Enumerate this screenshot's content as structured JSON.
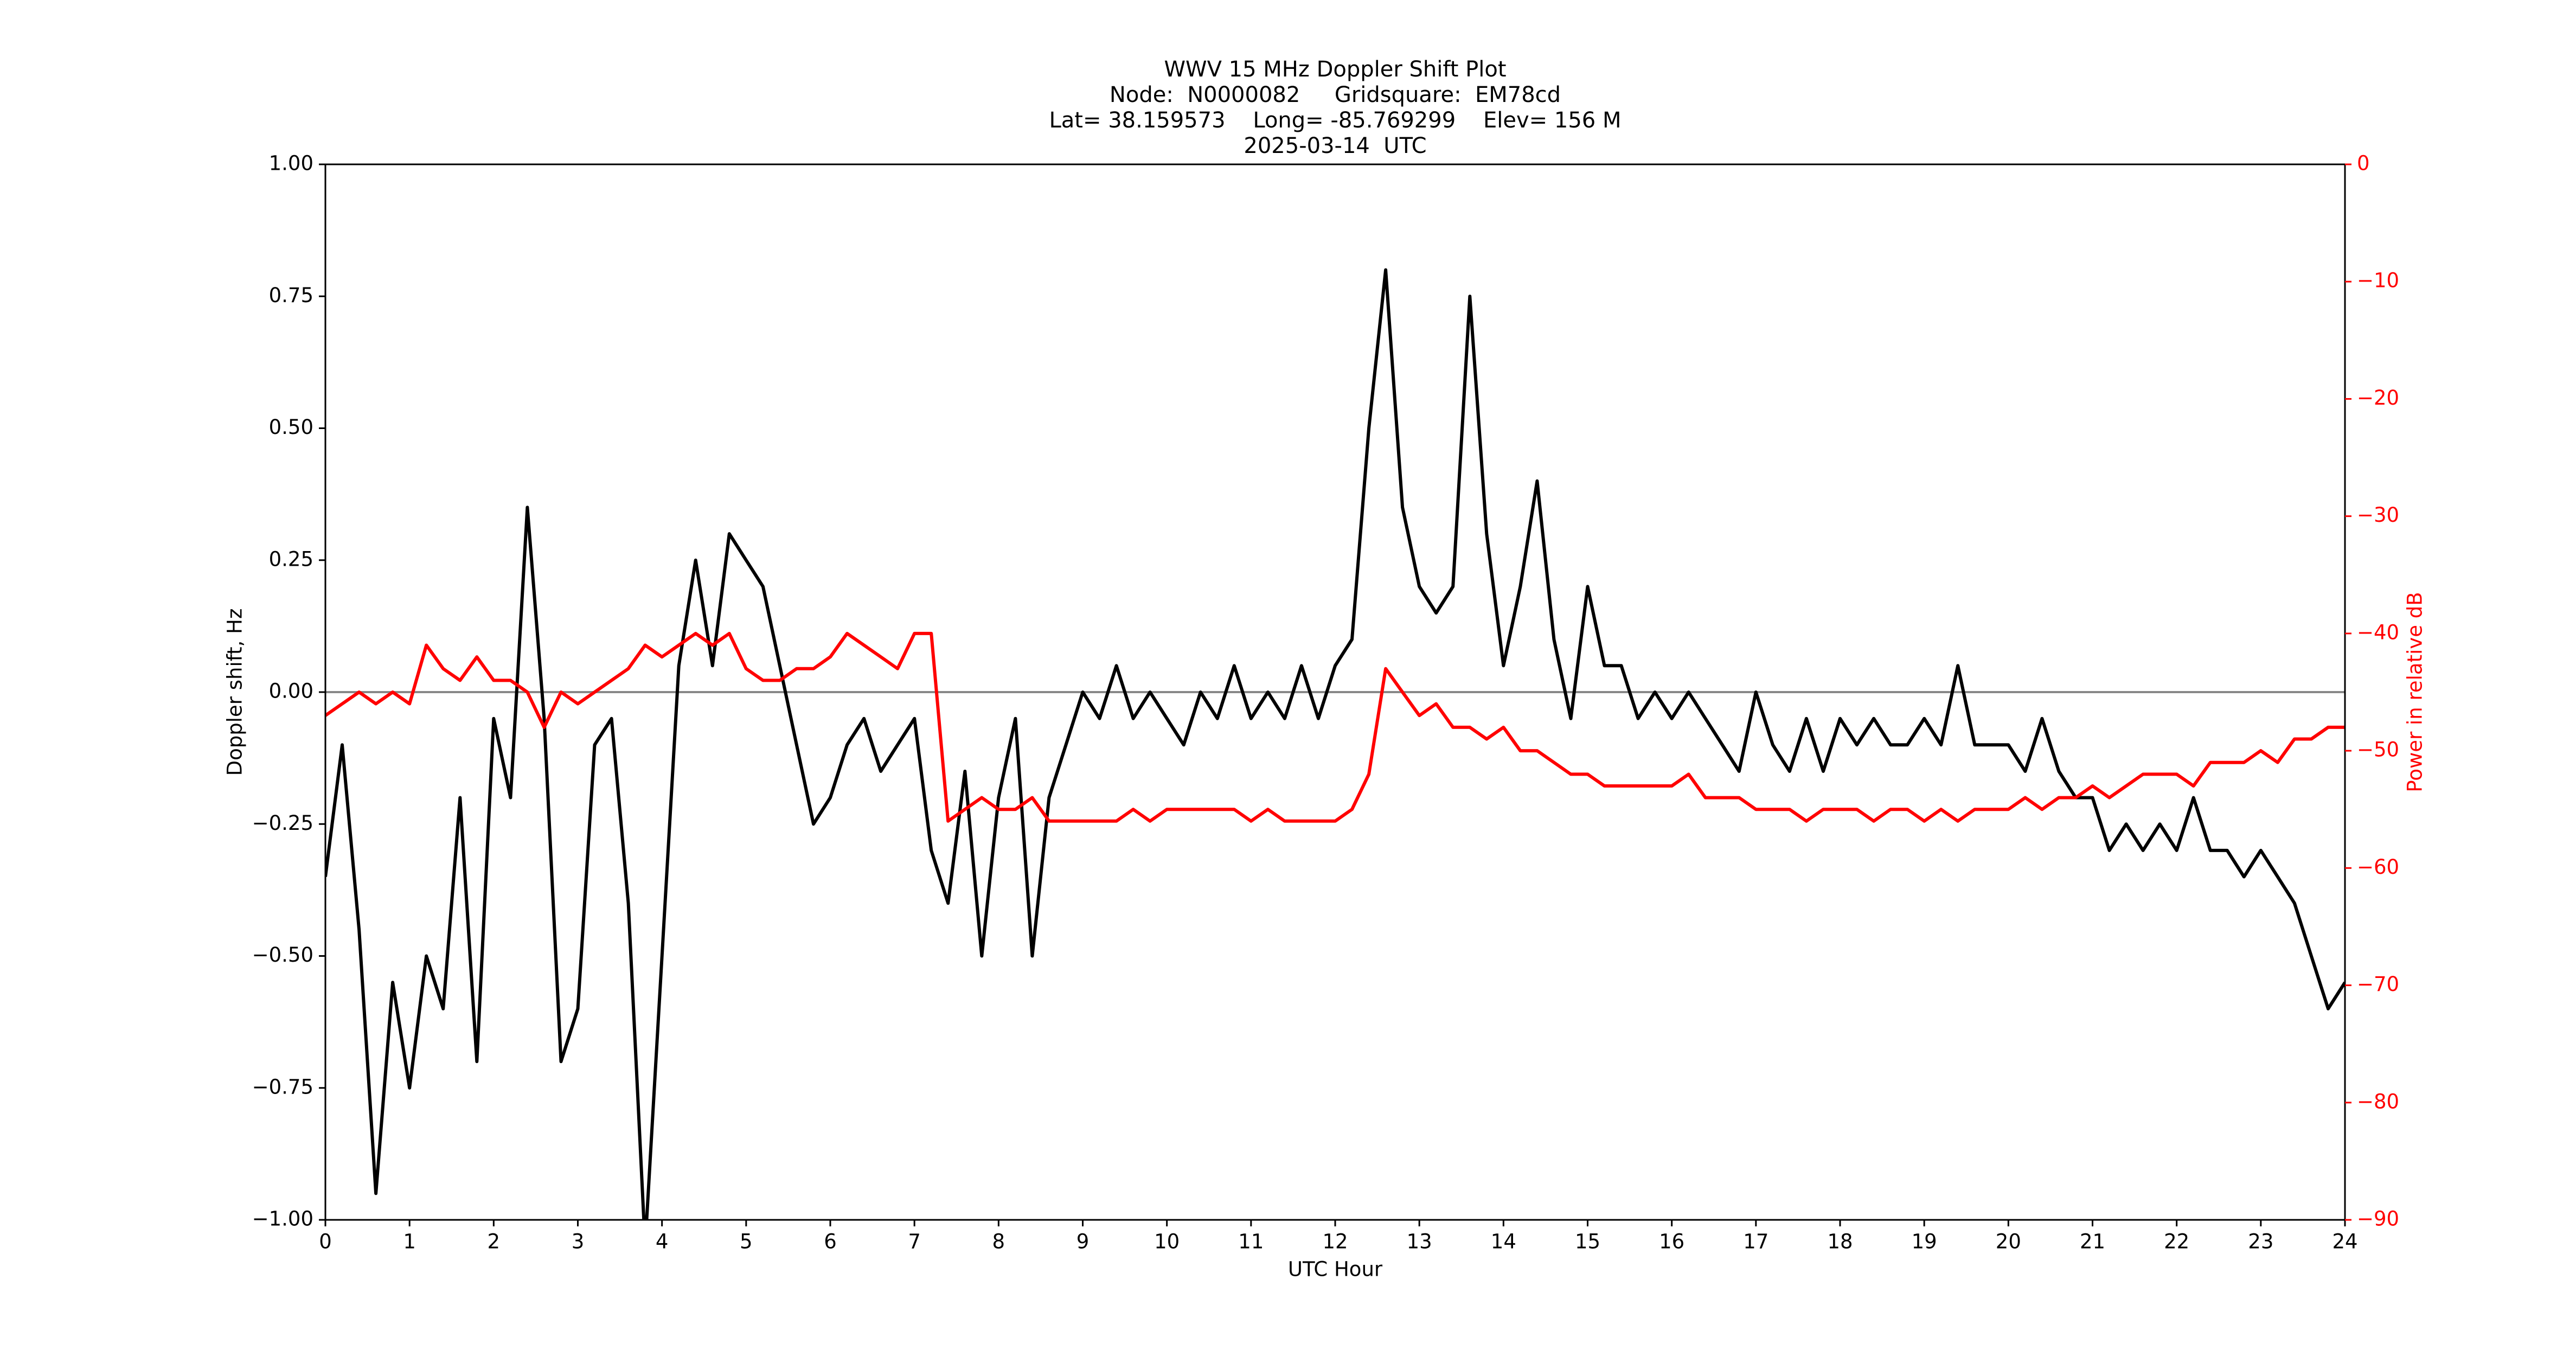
{
  "chart_data": {
    "type": "line",
    "title": [
      "WWV 15 MHz Doppler Shift Plot",
      "Node:  N0000082     Gridsquare:  EM78cd",
      "Lat= 38.159573    Long= -85.769299    Elev= 156 M",
      "2025-03-14  UTC"
    ],
    "xlabel": "UTC Hour",
    "ylabel": "Doppler shift, Hz",
    "y2label": "Power in relative dB",
    "x": [
      0,
      0.2,
      0.4,
      0.6,
      0.8,
      1,
      1.2,
      1.4,
      1.6,
      1.8,
      2,
      2.2,
      2.4,
      2.6,
      2.8,
      3,
      3.2,
      3.4,
      3.6,
      3.8,
      4,
      4.2,
      4.4,
      4.6,
      4.8,
      5,
      5.2,
      5.4,
      5.6,
      5.8,
      6,
      6.2,
      6.4,
      6.6,
      6.8,
      7,
      7.2,
      7.4,
      7.6,
      7.8,
      8,
      8.2,
      8.4,
      8.6,
      8.8,
      9,
      9.2,
      9.4,
      9.6,
      9.8,
      10,
      10.2,
      10.4,
      10.6,
      10.8,
      11,
      11.2,
      11.4,
      11.6,
      11.8,
      12,
      12.2,
      12.4,
      12.6,
      12.8,
      13,
      13.2,
      13.4,
      13.6,
      13.8,
      14,
      14.2,
      14.4,
      14.6,
      14.8,
      15,
      15.2,
      15.4,
      15.6,
      15.8,
      16,
      16.2,
      16.4,
      16.6,
      16.8,
      17,
      17.2,
      17.4,
      17.6,
      17.8,
      18,
      18.2,
      18.4,
      18.6,
      18.8,
      19,
      19.2,
      19.4,
      19.6,
      19.8,
      20,
      20.2,
      20.4,
      20.6,
      20.8,
      21,
      21.2,
      21.4,
      21.6,
      21.8,
      22,
      22.2,
      22.4,
      22.6,
      22.8,
      23,
      23.2,
      23.4,
      23.6,
      23.8,
      24
    ],
    "series": [
      {
        "color": "#000000",
        "values": [
          -0.35,
          -0.1,
          -0.45,
          -0.95,
          -0.55,
          -0.75,
          -0.5,
          -0.6,
          -0.2,
          -0.7,
          -0.05,
          -0.2,
          0.35,
          -0.05,
          -0.7,
          -0.6,
          -0.1,
          -0.05,
          -0.4,
          -1.05,
          -0.5,
          0.05,
          0.25,
          0.05,
          0.3,
          0.25,
          0.2,
          0.05,
          -0.1,
          -0.25,
          -0.2,
          -0.1,
          -0.05,
          -0.15,
          -0.1,
          -0.05,
          -0.3,
          -0.4,
          -0.15,
          -0.5,
          -0.2,
          -0.05,
          -0.5,
          -0.2,
          -0.1,
          0,
          -0.05,
          0.05,
          -0.05,
          0,
          -0.05,
          -0.1,
          0,
          -0.05,
          0.05,
          -0.05,
          0,
          -0.05,
          0.05,
          -0.05,
          0.05,
          0.1,
          0.5,
          0.8,
          0.35,
          0.2,
          0.15,
          0.2,
          0.75,
          0.3,
          0.05,
          0.2,
          0.4,
          0.1,
          -0.05,
          0.2,
          0.05,
          0.05,
          -0.05,
          0,
          -0.05,
          0,
          -0.05,
          -0.1,
          -0.15,
          0,
          -0.1,
          -0.15,
          -0.05,
          -0.15,
          -0.05,
          -0.1,
          -0.05,
          -0.1,
          -0.1,
          -0.05,
          -0.1,
          0.05,
          -0.1,
          -0.1,
          -0.1,
          -0.15,
          -0.05,
          -0.15,
          -0.2,
          -0.2,
          -0.3,
          -0.25,
          -0.3,
          -0.25,
          -0.3,
          -0.2,
          -0.3,
          -0.3,
          -0.35,
          -0.3,
          -0.35,
          -0.4,
          -0.5,
          -0.6,
          -0.55
        ]
      },
      {
        "color": "#ff0000",
        "axis": "y2",
        "values": [
          -47,
          -46,
          -45,
          -46,
          -45,
          -46,
          -41,
          -43,
          -44,
          -42,
          -44,
          -44,
          -45,
          -48,
          -45,
          -46,
          -45,
          -44,
          -43,
          -41,
          -42,
          -41,
          -40,
          -41,
          -40,
          -43,
          -44,
          -44,
          -43,
          -43,
          -42,
          -40,
          -41,
          -42,
          -43,
          -40,
          -40,
          -56,
          -55,
          -54,
          -55,
          -55,
          -54,
          -56,
          -56,
          -56,
          -56,
          -56,
          -55,
          -56,
          -55,
          -55,
          -55,
          -55,
          -55,
          -56,
          -55,
          -56,
          -56,
          -56,
          -56,
          -55,
          -52,
          -43,
          -45,
          -47,
          -46,
          -48,
          -48,
          -49,
          -48,
          -50,
          -50,
          -51,
          -52,
          -52,
          -53,
          -53,
          -53,
          -53,
          -53,
          -52,
          -54,
          -54,
          -54,
          -55,
          -55,
          -55,
          -56,
          -55,
          -55,
          -55,
          -56,
          -55,
          -55,
          -56,
          -55,
          -56,
          -55,
          -55,
          -55,
          -54,
          -55,
          -54,
          -54,
          -53,
          -54,
          -53,
          -52,
          -52,
          -52,
          -53,
          -51,
          -51,
          -51,
          -50,
          -51,
          -49,
          -49,
          -48,
          -48
        ]
      }
    ],
    "xlim": [
      0,
      24
    ],
    "xticks": [
      0,
      1,
      2,
      3,
      4,
      5,
      6,
      7,
      8,
      9,
      10,
      11,
      12,
      13,
      14,
      15,
      16,
      17,
      18,
      19,
      20,
      21,
      22,
      23,
      24
    ],
    "ylim": [
      -1,
      1
    ],
    "yticks": [
      {
        "value": -1,
        "label": "−1.00"
      },
      {
        "value": -0.75,
        "label": "−0.75"
      },
      {
        "value": -0.5,
        "label": "−0.50"
      },
      {
        "value": -0.25,
        "label": "−0.25"
      },
      {
        "value": 0,
        "label": "0.00"
      },
      {
        "value": 0.25,
        "label": "0.25"
      },
      {
        "value": 0.5,
        "label": "0.50"
      },
      {
        "value": 0.75,
        "label": "0.75"
      },
      {
        "value": 1,
        "label": "1.00"
      }
    ],
    "y2lim": [
      -90,
      0
    ],
    "y2ticks": [
      0,
      {
        "value": -10,
        "label": "−10"
      },
      {
        "value": -20,
        "label": "−20"
      },
      {
        "value": -30,
        "label": "−30"
      },
      {
        "value": -40,
        "label": "−40"
      },
      {
        "value": -50,
        "label": "−50"
      },
      {
        "value": -60,
        "label": "−60"
      },
      {
        "value": -70,
        "label": "−70"
      },
      {
        "value": -80,
        "label": "−80"
      },
      {
        "value": -90,
        "label": "−90"
      }
    ],
    "y2color": "#ff0000",
    "reference_line": 0,
    "reference_color": "#888888",
    "grid": false
  }
}
